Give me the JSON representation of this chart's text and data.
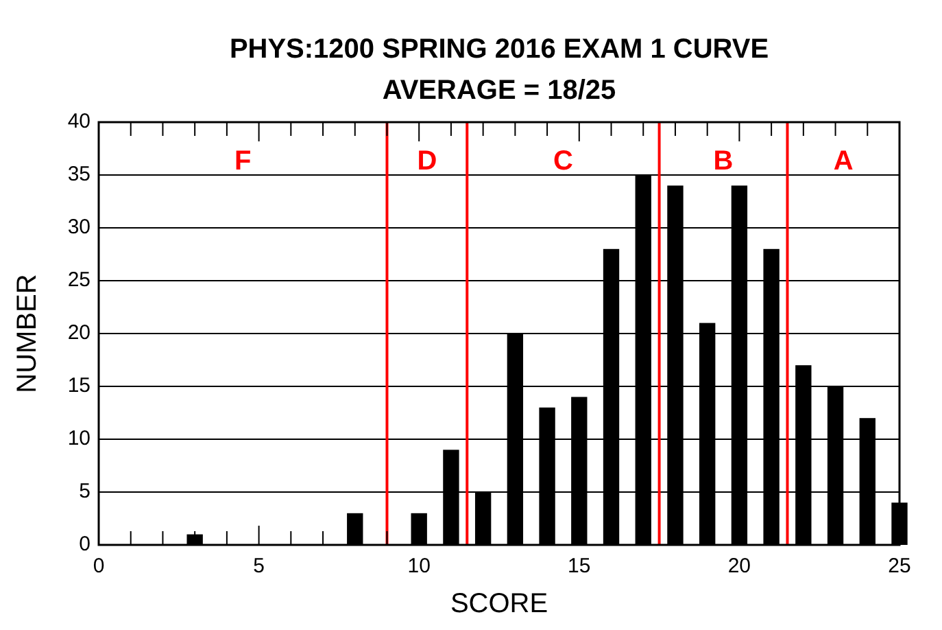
{
  "chart_data": {
    "type": "bar",
    "title": "PHYS:1200  SPRING 2016  EXAM 1 CURVE",
    "subtitle": "AVERAGE = 18/25",
    "xlabel": "SCORE",
    "ylabel": "NUMBER",
    "x": [
      3,
      8,
      10,
      11,
      12,
      13,
      14,
      15,
      16,
      17,
      18,
      19,
      20,
      21,
      22,
      23,
      24,
      25
    ],
    "values": [
      1,
      3,
      3,
      9,
      5,
      20,
      13,
      14,
      28,
      35,
      34,
      21,
      34,
      28,
      17,
      15,
      12,
      4
    ],
    "color": "#000000",
    "xlim": [
      0,
      25
    ],
    "ylim": [
      0,
      40
    ],
    "xticks": [
      0,
      {
        "value": 1,
        "label": null
      },
      {
        "value": 2,
        "label": null
      },
      {
        "value": 3,
        "label": null
      },
      {
        "value": 4,
        "label": null
      },
      5,
      {
        "value": 6,
        "label": null
      },
      {
        "value": 7,
        "label": null
      },
      {
        "value": 8,
        "label": null
      },
      {
        "value": 9,
        "label": null
      },
      10,
      {
        "value": 11,
        "label": null
      },
      {
        "value": 12,
        "label": null
      },
      {
        "value": 13,
        "label": null
      },
      {
        "value": 14,
        "label": null
      },
      15,
      {
        "value": 16,
        "label": null
      },
      {
        "value": 17,
        "label": null
      },
      {
        "value": 18,
        "label": null
      },
      {
        "value": 19,
        "label": null
      },
      20,
      {
        "value": 21,
        "label": null
      },
      {
        "value": 22,
        "label": null
      },
      {
        "value": 23,
        "label": null
      },
      {
        "value": 24,
        "label": null
      },
      25
    ],
    "yticks": [
      0,
      5,
      10,
      15,
      20,
      25,
      30,
      35,
      40
    ],
    "grid": "y",
    "ref_lines": [
      {
        "axis": "x",
        "value": 9,
        "color": "#ff0000"
      },
      {
        "axis": "x",
        "value": 11.5,
        "color": "#ff0000"
      },
      {
        "axis": "x",
        "value": 17.5,
        "color": "#ff0000"
      },
      {
        "axis": "x",
        "value": 21.5,
        "color": "#ff0000"
      }
    ],
    "annotations": [
      "F",
      "D",
      "C",
      "B",
      "A"
    ]
  }
}
